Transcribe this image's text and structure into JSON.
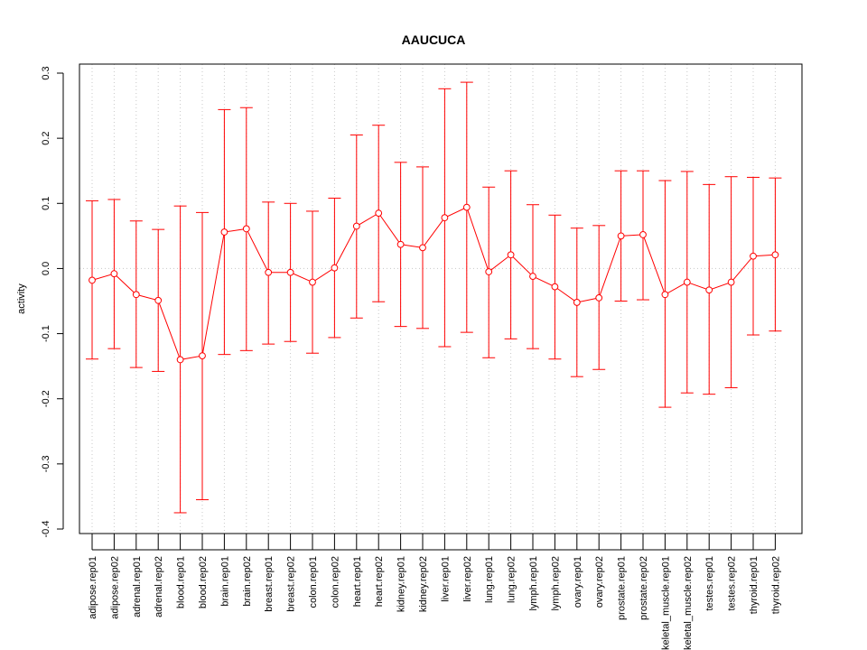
{
  "chart_data": {
    "type": "line",
    "title": "AAUCUCA",
    "xlabel": "",
    "ylabel": "activity",
    "ylim": [
      -0.4,
      0.3
    ],
    "yticks": [
      "-0.4",
      "-0.3",
      "-0.2",
      "-0.1",
      "0.0",
      "0.1",
      "0.2",
      "0.3"
    ],
    "grid": "vertical dotted",
    "colors": {
      "series": "#ff0000",
      "grid": "#c8c8c8",
      "axis": "#000000"
    },
    "categories": [
      "adipose.rep01",
      "adipose.rep02",
      "adrenal.rep01",
      "adrenal.rep02",
      "blood.rep01",
      "blood.rep02",
      "brain.rep01",
      "brain.rep02",
      "breast.rep01",
      "breast.rep02",
      "colon.rep01",
      "colon.rep02",
      "heart.rep01",
      "heart.rep02",
      "kidney.rep01",
      "kidney.rep02",
      "liver.rep01",
      "liver.rep02",
      "lung.rep01",
      "lung.rep02",
      "lymph.rep01",
      "lymph.rep02",
      "ovary.rep01",
      "ovary.rep02",
      "prostate.rep01",
      "prostate.rep02",
      "skeletal_muscle.rep01",
      "skeletal_muscle.rep02",
      "testes.rep01",
      "testes.rep02",
      "thyroid.rep01",
      "thyroid.rep02"
    ],
    "values": [
      -0.018,
      -0.008,
      -0.04,
      -0.049,
      -0.14,
      -0.134,
      0.056,
      0.061,
      -0.006,
      -0.006,
      -0.021,
      0.001,
      0.065,
      0.085,
      0.037,
      0.032,
      0.078,
      0.094,
      -0.005,
      0.021,
      -0.012,
      -0.028,
      -0.052,
      -0.045,
      0.05,
      0.052,
      -0.04,
      -0.021,
      -0.033,
      -0.021,
      0.019,
      0.021
    ],
    "upper": [
      0.104,
      0.106,
      0.073,
      0.06,
      0.096,
      0.086,
      0.244,
      0.247,
      0.102,
      0.1,
      0.088,
      0.108,
      0.205,
      0.22,
      0.163,
      0.156,
      0.276,
      0.286,
      0.125,
      0.15,
      0.098,
      0.082,
      0.062,
      0.066,
      0.15,
      0.15,
      0.135,
      0.149,
      0.129,
      0.141,
      0.14,
      0.139
    ],
    "lower": [
      -0.139,
      -0.123,
      -0.152,
      -0.158,
      -0.375,
      -0.355,
      -0.132,
      -0.126,
      -0.116,
      -0.112,
      -0.13,
      -0.106,
      -0.076,
      -0.051,
      -0.089,
      -0.092,
      -0.12,
      -0.098,
      -0.137,
      -0.108,
      -0.123,
      -0.139,
      -0.166,
      -0.155,
      -0.05,
      -0.048,
      -0.213,
      -0.191,
      -0.193,
      -0.183,
      -0.102,
      -0.096
    ]
  }
}
